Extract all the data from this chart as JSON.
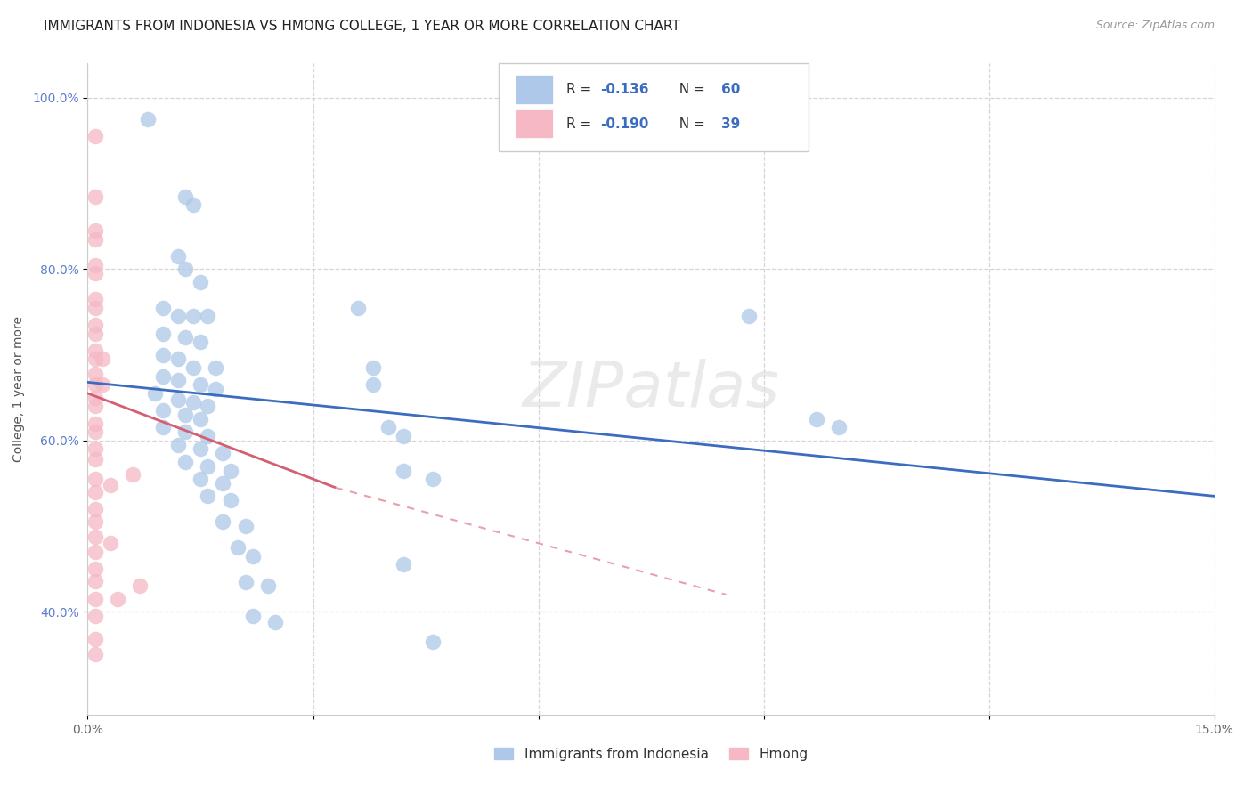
{
  "title": "IMMIGRANTS FROM INDONESIA VS HMONG COLLEGE, 1 YEAR OR MORE CORRELATION CHART",
  "source": "Source: ZipAtlas.com",
  "ylabel": "College, 1 year or more",
  "xlim": [
    0,
    0.15
  ],
  "ylim": [
    0.28,
    1.04
  ],
  "xtick_positions": [
    0.0,
    0.03,
    0.06,
    0.09,
    0.12,
    0.15
  ],
  "xtick_labels": [
    "0.0%",
    "",
    "",
    "",
    "",
    "15.0%"
  ],
  "ytick_positions": [
    0.4,
    0.6,
    0.8,
    1.0
  ],
  "ytick_labels": [
    "40.0%",
    "60.0%",
    "80.0%",
    "100.0%"
  ],
  "legend_label1": "Immigrants from Indonesia",
  "legend_label2": "Hmong",
  "blue_color": "#adc8e8",
  "pink_color": "#f5b8c4",
  "blue_line_color": "#3b6cbf",
  "pink_line_color": "#d45f72",
  "pink_line_dash": "#e8a0aa",
  "watermark": "ZIPatlas",
  "blue_line": {
    "x0": 0.0,
    "y0": 0.668,
    "x1": 0.15,
    "y1": 0.535
  },
  "pink_line_solid": {
    "x0": 0.0,
    "y0": 0.655,
    "x1": 0.033,
    "y1": 0.545
  },
  "pink_line_dashed": {
    "x0": 0.033,
    "y0": 0.545,
    "x1": 0.085,
    "y1": 0.42
  },
  "indonesia_points": [
    [
      0.008,
      0.975
    ],
    [
      0.013,
      0.885
    ],
    [
      0.014,
      0.875
    ],
    [
      0.012,
      0.815
    ],
    [
      0.013,
      0.8
    ],
    [
      0.015,
      0.785
    ],
    [
      0.01,
      0.755
    ],
    [
      0.012,
      0.745
    ],
    [
      0.014,
      0.745
    ],
    [
      0.016,
      0.745
    ],
    [
      0.01,
      0.725
    ],
    [
      0.013,
      0.72
    ],
    [
      0.015,
      0.715
    ],
    [
      0.01,
      0.7
    ],
    [
      0.012,
      0.695
    ],
    [
      0.014,
      0.685
    ],
    [
      0.017,
      0.685
    ],
    [
      0.01,
      0.675
    ],
    [
      0.012,
      0.67
    ],
    [
      0.015,
      0.665
    ],
    [
      0.017,
      0.66
    ],
    [
      0.009,
      0.655
    ],
    [
      0.012,
      0.648
    ],
    [
      0.014,
      0.645
    ],
    [
      0.016,
      0.64
    ],
    [
      0.01,
      0.635
    ],
    [
      0.013,
      0.63
    ],
    [
      0.015,
      0.625
    ],
    [
      0.01,
      0.615
    ],
    [
      0.013,
      0.61
    ],
    [
      0.016,
      0.605
    ],
    [
      0.012,
      0.595
    ],
    [
      0.015,
      0.59
    ],
    [
      0.018,
      0.585
    ],
    [
      0.013,
      0.575
    ],
    [
      0.016,
      0.57
    ],
    [
      0.019,
      0.565
    ],
    [
      0.015,
      0.555
    ],
    [
      0.018,
      0.55
    ],
    [
      0.016,
      0.535
    ],
    [
      0.019,
      0.53
    ],
    [
      0.018,
      0.505
    ],
    [
      0.021,
      0.5
    ],
    [
      0.02,
      0.475
    ],
    [
      0.022,
      0.465
    ],
    [
      0.021,
      0.435
    ],
    [
      0.024,
      0.43
    ],
    [
      0.022,
      0.395
    ],
    [
      0.025,
      0.388
    ],
    [
      0.036,
      0.755
    ],
    [
      0.038,
      0.685
    ],
    [
      0.038,
      0.665
    ],
    [
      0.04,
      0.615
    ],
    [
      0.042,
      0.605
    ],
    [
      0.042,
      0.565
    ],
    [
      0.046,
      0.555
    ],
    [
      0.042,
      0.455
    ],
    [
      0.046,
      0.365
    ],
    [
      0.088,
      0.745
    ],
    [
      0.097,
      0.625
    ],
    [
      0.1,
      0.615
    ]
  ],
  "hmong_points": [
    [
      0.001,
      0.955
    ],
    [
      0.001,
      0.885
    ],
    [
      0.001,
      0.845
    ],
    [
      0.001,
      0.835
    ],
    [
      0.001,
      0.805
    ],
    [
      0.001,
      0.795
    ],
    [
      0.001,
      0.765
    ],
    [
      0.001,
      0.755
    ],
    [
      0.001,
      0.735
    ],
    [
      0.001,
      0.725
    ],
    [
      0.001,
      0.705
    ],
    [
      0.001,
      0.695
    ],
    [
      0.001,
      0.678
    ],
    [
      0.001,
      0.665
    ],
    [
      0.001,
      0.65
    ],
    [
      0.001,
      0.64
    ],
    [
      0.001,
      0.62
    ],
    [
      0.001,
      0.61
    ],
    [
      0.001,
      0.59
    ],
    [
      0.001,
      0.578
    ],
    [
      0.001,
      0.555
    ],
    [
      0.001,
      0.54
    ],
    [
      0.001,
      0.52
    ],
    [
      0.001,
      0.505
    ],
    [
      0.001,
      0.488
    ],
    [
      0.001,
      0.47
    ],
    [
      0.001,
      0.45
    ],
    [
      0.001,
      0.436
    ],
    [
      0.001,
      0.415
    ],
    [
      0.001,
      0.395
    ],
    [
      0.001,
      0.368
    ],
    [
      0.001,
      0.35
    ],
    [
      0.002,
      0.695
    ],
    [
      0.002,
      0.665
    ],
    [
      0.003,
      0.548
    ],
    [
      0.003,
      0.48
    ],
    [
      0.004,
      0.415
    ],
    [
      0.006,
      0.56
    ],
    [
      0.007,
      0.43
    ]
  ],
  "title_fontsize": 11,
  "axis_fontsize": 10,
  "tick_fontsize": 10,
  "source_fontsize": 9
}
